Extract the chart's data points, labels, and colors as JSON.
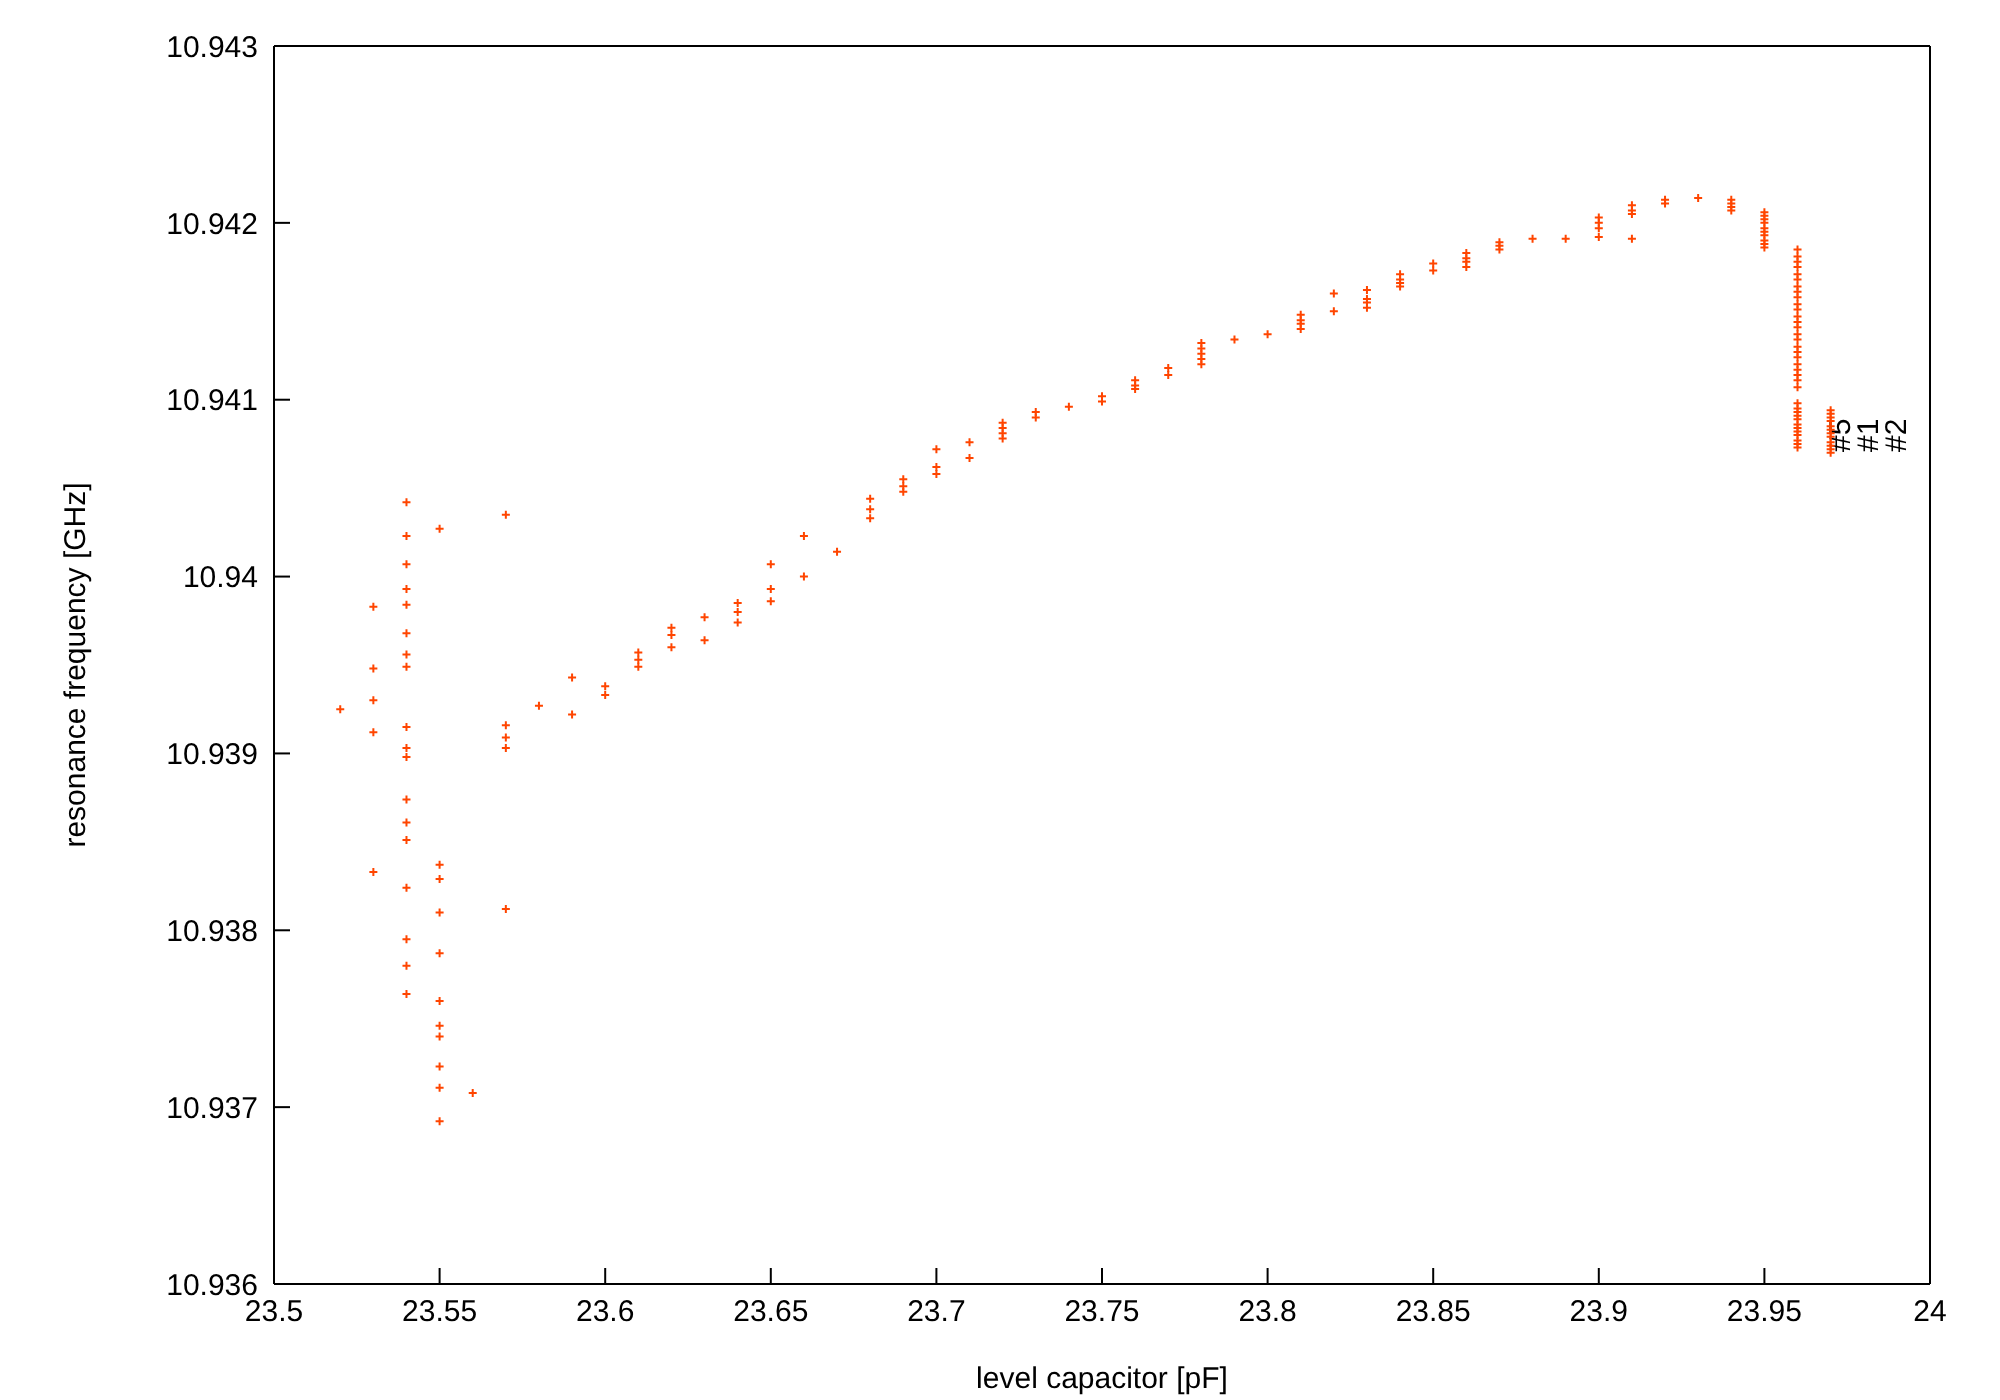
{
  "chart_data": {
    "type": "scatter",
    "xlabel": "level capacitor [pF]",
    "ylabel": "resonance frequency [GHz]",
    "xlim": [
      23.5,
      24
    ],
    "xticks": [
      23.5,
      23.55,
      23.6,
      23.65,
      23.7,
      23.75,
      23.8,
      23.85,
      23.9,
      23.95,
      24
    ],
    "ylim": [
      10.936,
      10.943
    ],
    "yticks": [
      10.936,
      10.937,
      10.938,
      10.939,
      10.94,
      10.941,
      10.942,
      10.943
    ],
    "marker": "cross",
    "annotations": [
      "#5",
      "#1",
      "#2"
    ],
    "series": [
      {
        "color": "#ff4500",
        "x": [
          23.52,
          23.53,
          23.53,
          23.53,
          23.53,
          23.53,
          23.54,
          23.54,
          23.54,
          23.54,
          23.54,
          23.54,
          23.54,
          23.54,
          23.54,
          23.54,
          23.54,
          23.54,
          23.54,
          23.54,
          23.54,
          23.54,
          23.54,
          23.54,
          23.55,
          23.55,
          23.55,
          23.55,
          23.55,
          23.55,
          23.55,
          23.55,
          23.55,
          23.55,
          23.55,
          23.56,
          23.57,
          23.57,
          23.57,
          23.57,
          23.57,
          23.58,
          23.59,
          23.59,
          23.6,
          23.6,
          23.61,
          23.61,
          23.61,
          23.62,
          23.62,
          23.62,
          23.63,
          23.63,
          23.64,
          23.64,
          23.64,
          23.65,
          23.65,
          23.65,
          23.66,
          23.66,
          23.67,
          23.68,
          23.68,
          23.68,
          23.69,
          23.69,
          23.69,
          23.7,
          23.7,
          23.7,
          23.71,
          23.71,
          23.72,
          23.72,
          23.72,
          23.72,
          23.73,
          23.73,
          23.74,
          23.75,
          23.75,
          23.76,
          23.76,
          23.76,
          23.77,
          23.77,
          23.78,
          23.78,
          23.78,
          23.78,
          23.78,
          23.79,
          23.8,
          23.81,
          23.81,
          23.81,
          23.81,
          23.82,
          23.82,
          23.83,
          23.83,
          23.83,
          23.83,
          23.84,
          23.84,
          23.84,
          23.84,
          23.85,
          23.85,
          23.86,
          23.86,
          23.86,
          23.86,
          23.87,
          23.87,
          23.87,
          23.88,
          23.89,
          23.9,
          23.9,
          23.9,
          23.9,
          23.91,
          23.91,
          23.91,
          23.91,
          23.92,
          23.92,
          23.93,
          23.94,
          23.94,
          23.94,
          23.94,
          23.95,
          23.95,
          23.95,
          23.95,
          23.95,
          23.95,
          23.95,
          23.95,
          23.95,
          23.95,
          23.96,
          23.96,
          23.96,
          23.96,
          23.96,
          23.96,
          23.96,
          23.96,
          23.96,
          23.96,
          23.96,
          23.96,
          23.96,
          23.96,
          23.96,
          23.96,
          23.96,
          23.96,
          23.96,
          23.96,
          23.96,
          23.96,
          23.96,
          23.96,
          23.96,
          23.96,
          23.96,
          23.96,
          23.96,
          23.96,
          23.96,
          23.96,
          23.96,
          23.96,
          23.96,
          23.96,
          23.97,
          23.97,
          23.97,
          23.97,
          23.97,
          23.97,
          23.97,
          23.97,
          23.97,
          23.97,
          23.97,
          23.97
        ],
        "values": [
          10.93925,
          10.93983,
          10.93948,
          10.9393,
          10.93912,
          10.93833,
          10.94042,
          10.94023,
          10.94007,
          10.93993,
          10.93984,
          10.93968,
          10.93956,
          10.93949,
          10.93915,
          10.93903,
          10.93898,
          10.93874,
          10.93861,
          10.93851,
          10.93824,
          10.93795,
          10.9378,
          10.93764,
          10.94027,
          10.93837,
          10.93829,
          10.9381,
          10.93787,
          10.9376,
          10.93746,
          10.9374,
          10.93723,
          10.93711,
          10.93692,
          10.93708,
          10.94035,
          10.93916,
          10.93909,
          10.93903,
          10.93812,
          10.93927,
          10.93943,
          10.93922,
          10.93938,
          10.93933,
          10.93957,
          10.93953,
          10.93949,
          10.93971,
          10.93967,
          10.9396,
          10.93977,
          10.93964,
          10.93985,
          10.9398,
          10.93974,
          10.94007,
          10.93993,
          10.93986,
          10.94023,
          10.94,
          10.94014,
          10.94044,
          10.94038,
          10.94033,
          10.94055,
          10.94051,
          10.94048,
          10.94072,
          10.94062,
          10.94058,
          10.94076,
          10.94067,
          10.94087,
          10.94084,
          10.94081,
          10.94078,
          10.94093,
          10.9409,
          10.94096,
          10.94102,
          10.94099,
          10.94111,
          10.94108,
          10.94106,
          10.94118,
          10.94114,
          10.94132,
          10.94129,
          10.94126,
          10.94123,
          10.9412,
          10.94134,
          10.94137,
          10.94148,
          10.94145,
          10.94143,
          10.9414,
          10.9416,
          10.9415,
          10.94162,
          10.94157,
          10.94155,
          10.94152,
          10.94171,
          10.94168,
          10.94166,
          10.94164,
          10.94177,
          10.94173,
          10.94183,
          10.9418,
          10.94178,
          10.94175,
          10.94189,
          10.94187,
          10.94185,
          10.94191,
          10.94191,
          10.94203,
          10.942,
          10.94197,
          10.94192,
          10.9421,
          10.94207,
          10.94205,
          10.94191,
          10.94213,
          10.94211,
          10.94214,
          10.94213,
          10.94211,
          10.94209,
          10.94207,
          10.94206,
          10.94204,
          10.94202,
          10.942,
          10.94197,
          10.94195,
          10.94193,
          10.9419,
          10.94188,
          10.94186,
          10.94185,
          10.94181,
          10.94178,
          10.94175,
          10.94171,
          10.94168,
          10.94164,
          10.94161,
          10.94158,
          10.94154,
          10.94151,
          10.94147,
          10.94144,
          10.94141,
          10.94137,
          10.94134,
          10.9413,
          10.94127,
          10.94124,
          10.9412,
          10.94117,
          10.94114,
          10.94111,
          10.94107,
          10.94098,
          10.94095,
          10.94093,
          10.94091,
          10.94089,
          10.94086,
          10.94084,
          10.94082,
          10.9408,
          10.94077,
          10.94075,
          10.94073,
          10.94094,
          10.94092,
          10.9409,
          10.94088,
          10.94085,
          10.94083,
          10.94081,
          10.94079,
          10.94076,
          10.94074,
          10.94072,
          10.9407
        ]
      }
    ]
  }
}
